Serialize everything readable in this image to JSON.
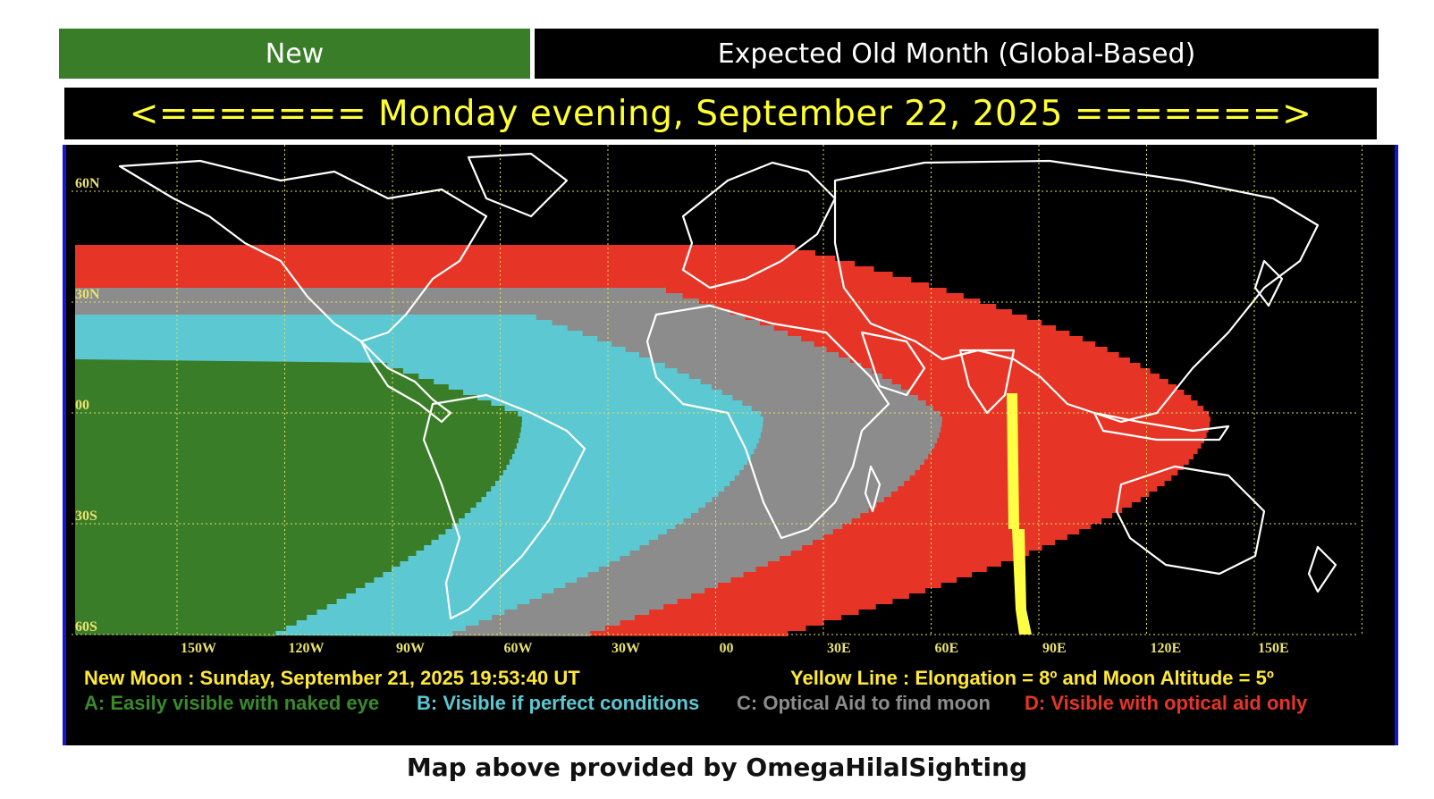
{
  "header": {
    "new_tab_label": "New",
    "old_month_label": "Expected Old Month (Global-Based)"
  },
  "date_banner": "<======= Monday evening, September 22, 2025 =======>",
  "map": {
    "latitude_labels": [
      "60N",
      "30N",
      "00",
      "30S",
      "60S"
    ],
    "longitude_labels": [
      "150W",
      "120W",
      "90W",
      "60W",
      "30W",
      "00",
      "30E",
      "60E",
      "90E",
      "120E",
      "150E"
    ],
    "new_moon_text": "New Moon : Sunday, September 21, 2025  19:53:40  UT",
    "yellow_line_text": "Yellow Line : Elongation = 8º  and Moon Altitude = 5º",
    "legend": [
      {
        "key": "A",
        "label": "A: Easily visible with naked eye",
        "color": "#3a7d28"
      },
      {
        "key": "B",
        "label": "B: Visible if perfect conditions",
        "color": "#5bc8d2"
      },
      {
        "key": "C",
        "label": "C: Optical Aid to find moon",
        "color": "#8c8c8c"
      },
      {
        "key": "D",
        "label": "D: Visible with optical aid only",
        "color": "#e63526"
      }
    ],
    "colors": {
      "zone_a": "#3a7d28",
      "zone_b": "#5bc8d2",
      "zone_c": "#8c8c8c",
      "zone_d": "#e63526",
      "yellow_line": "#ffff44",
      "grid": "#e0e060",
      "frame": "#1515d8",
      "coastline": "#ffffff"
    }
  },
  "caption": "Map above provided by OmegaHilalSighting"
}
